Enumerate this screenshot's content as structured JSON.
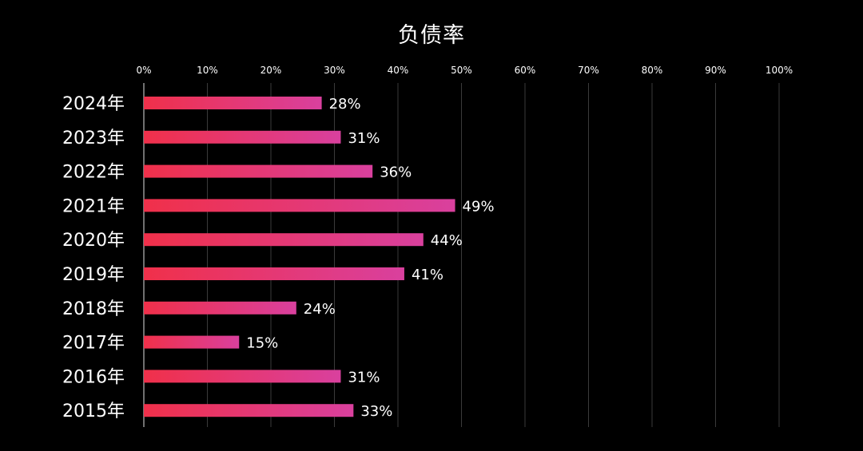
{
  "chart_data": {
    "type": "bar",
    "orientation": "horizontal",
    "title": "负债率",
    "xlabel": "",
    "ylabel": "",
    "xlim": [
      0,
      100
    ],
    "x_ticks": [
      "0%",
      "10%",
      "20%",
      "30%",
      "40%",
      "50%",
      "60%",
      "70%",
      "80%",
      "90%",
      "100%"
    ],
    "x_tick_values": [
      0,
      10,
      20,
      30,
      40,
      50,
      60,
      70,
      80,
      90,
      100
    ],
    "grid": true,
    "categories": [
      "2024年",
      "2023年",
      "2022年",
      "2021年",
      "2020年",
      "2019年",
      "2018年",
      "2017年",
      "2016年",
      "2015年"
    ],
    "values": [
      28,
      31,
      36,
      49,
      44,
      41,
      24,
      15,
      31,
      33
    ],
    "data_labels": [
      "28%",
      "31%",
      "36%",
      "49%",
      "44%",
      "41%",
      "24%",
      "15%",
      "31%",
      "33%"
    ],
    "colors": {
      "background": "#000000",
      "bar_start": "#f0304a",
      "bar_end": "#d9409e",
      "text": "#ffffff",
      "grid": "#3a3a3a",
      "axis": "#bbbbbb"
    }
  }
}
